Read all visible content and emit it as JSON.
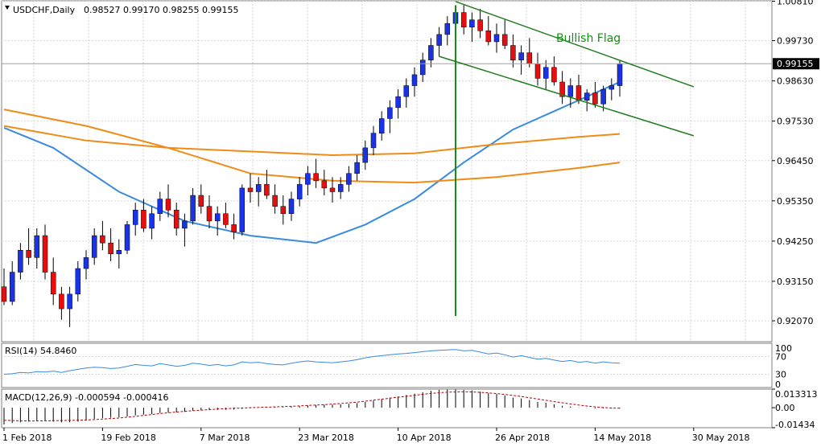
{
  "window_title": "USDCHF,Daily",
  "ohlc_header": "0.98527 0.99170 0.98255 0.99155",
  "current_price_label": "0.99155",
  "colors": {
    "bull": "#1a33e6",
    "bear": "#e60f0f",
    "wick": "#000000",
    "ma_fast": "#3a8be0",
    "ma_mid": "#f08b16",
    "ma_slow": "#f08b16",
    "channel": "#1e7d1e",
    "pole": "#158e15",
    "annotation": "#158e15",
    "grid": "#d7d7d7",
    "panel_border": "#7f7f7f",
    "rsi_line": "#3a8be0",
    "macd_hist": "#b30000",
    "macd_signal": "#b30000"
  },
  "chart_data": {
    "type": "candlestick",
    "title": "USDCHF,Daily",
    "ylim": [
      0.915,
      1.0082
    ],
    "y_ticks": [
      "1.00810",
      "0.99730",
      "0.98630",
      "0.97530",
      "0.96450",
      "0.95350",
      "0.94250",
      "0.93150",
      "0.92070"
    ],
    "x_tick_labels": [
      "1 Feb 2018",
      "19 Feb 2018",
      "7 Mar 2018",
      "23 Mar 2018",
      "10 Apr 2018",
      "26 Apr 2018",
      "14 May 2018",
      "30 May 2018"
    ],
    "x_tick_bar_index": [
      0,
      12,
      24,
      36,
      48,
      60,
      72,
      84
    ],
    "candles": [
      [
        0.93,
        0.935,
        0.925,
        0.926
      ],
      [
        0.926,
        0.937,
        0.925,
        0.934
      ],
      [
        0.934,
        0.942,
        0.932,
        0.94
      ],
      [
        0.94,
        0.946,
        0.936,
        0.938
      ],
      [
        0.938,
        0.946,
        0.935,
        0.944
      ],
      [
        0.944,
        0.947,
        0.932,
        0.934
      ],
      [
        0.934,
        0.938,
        0.925,
        0.928
      ],
      [
        0.928,
        0.93,
        0.921,
        0.924
      ],
      [
        0.924,
        0.93,
        0.919,
        0.928
      ],
      [
        0.928,
        0.937,
        0.926,
        0.935
      ],
      [
        0.935,
        0.94,
        0.932,
        0.938
      ],
      [
        0.938,
        0.946,
        0.936,
        0.944
      ],
      [
        0.944,
        0.948,
        0.94,
        0.942
      ],
      [
        0.942,
        0.946,
        0.937,
        0.939
      ],
      [
        0.939,
        0.943,
        0.935,
        0.94
      ],
      [
        0.94,
        0.948,
        0.939,
        0.947
      ],
      [
        0.947,
        0.953,
        0.944,
        0.951
      ],
      [
        0.951,
        0.954,
        0.945,
        0.946
      ],
      [
        0.946,
        0.952,
        0.943,
        0.95
      ],
      [
        0.95,
        0.956,
        0.948,
        0.954
      ],
      [
        0.954,
        0.958,
        0.949,
        0.951
      ],
      [
        0.951,
        0.953,
        0.944,
        0.946
      ],
      [
        0.946,
        0.95,
        0.941,
        0.948
      ],
      [
        0.948,
        0.957,
        0.947,
        0.955
      ],
      [
        0.955,
        0.958,
        0.95,
        0.952
      ],
      [
        0.952,
        0.955,
        0.946,
        0.948
      ],
      [
        0.948,
        0.952,
        0.944,
        0.95
      ],
      [
        0.95,
        0.953,
        0.946,
        0.947
      ],
      [
        0.947,
        0.95,
        0.943,
        0.945
      ],
      [
        0.945,
        0.958,
        0.944,
        0.957
      ],
      [
        0.957,
        0.961,
        0.953,
        0.956
      ],
      [
        0.956,
        0.96,
        0.952,
        0.958
      ],
      [
        0.958,
        0.962,
        0.954,
        0.955
      ],
      [
        0.955,
        0.958,
        0.95,
        0.952
      ],
      [
        0.952,
        0.955,
        0.947,
        0.95
      ],
      [
        0.95,
        0.956,
        0.948,
        0.954
      ],
      [
        0.954,
        0.96,
        0.952,
        0.958
      ],
      [
        0.958,
        0.963,
        0.955,
        0.961
      ],
      [
        0.961,
        0.965,
        0.957,
        0.959
      ],
      [
        0.959,
        0.962,
        0.955,
        0.957
      ],
      [
        0.957,
        0.96,
        0.953,
        0.956
      ],
      [
        0.956,
        0.96,
        0.954,
        0.958
      ],
      [
        0.958,
        0.963,
        0.956,
        0.961
      ],
      [
        0.961,
        0.966,
        0.959,
        0.964
      ],
      [
        0.964,
        0.97,
        0.962,
        0.968
      ],
      [
        0.968,
        0.974,
        0.966,
        0.972
      ],
      [
        0.972,
        0.978,
        0.97,
        0.976
      ],
      [
        0.976,
        0.981,
        0.972,
        0.979
      ],
      [
        0.979,
        0.984,
        0.976,
        0.982
      ],
      [
        0.982,
        0.987,
        0.979,
        0.985
      ],
      [
        0.985,
        0.99,
        0.982,
        0.988
      ],
      [
        0.988,
        0.994,
        0.986,
        0.992
      ],
      [
        0.992,
        0.998,
        0.99,
        0.996
      ],
      [
        0.996,
        1.001,
        0.993,
        0.999
      ],
      [
        0.999,
        1.004,
        0.996,
        1.002
      ],
      [
        1.002,
        1.007,
        0.999,
        1.005
      ],
      [
        1.005,
        1.007,
        0.999,
        1.001
      ],
      [
        1.001,
        1.005,
        0.997,
        1.003
      ],
      [
        1.003,
        1.006,
        0.998,
        1.0
      ],
      [
        1.0,
        1.004,
        0.996,
        0.997
      ],
      [
        0.997,
        1.002,
        0.994,
        0.999
      ],
      [
        0.999,
        1.003,
        0.995,
        0.996
      ],
      [
        0.996,
        0.999,
        0.99,
        0.992
      ],
      [
        0.992,
        0.996,
        0.988,
        0.994
      ],
      [
        0.994,
        0.998,
        0.99,
        0.991
      ],
      [
        0.991,
        0.994,
        0.985,
        0.987
      ],
      [
        0.987,
        0.992,
        0.984,
        0.99
      ],
      [
        0.99,
        0.993,
        0.985,
        0.986
      ],
      [
        0.986,
        0.989,
        0.98,
        0.982
      ],
      [
        0.982,
        0.987,
        0.979,
        0.985
      ],
      [
        0.985,
        0.988,
        0.98,
        0.981
      ],
      [
        0.981,
        0.984,
        0.978,
        0.983
      ],
      [
        0.983,
        0.986,
        0.979,
        0.98
      ],
      [
        0.98,
        0.985,
        0.978,
        0.984
      ],
      [
        0.984,
        0.987,
        0.981,
        0.985
      ],
      [
        0.985,
        0.992,
        0.982,
        0.991
      ]
    ],
    "moving_averages": [
      {
        "period_hint": "fast",
        "points": [
          [
            0,
            0.9735
          ],
          [
            6,
            0.968
          ],
          [
            14,
            0.956
          ],
          [
            22,
            0.948
          ],
          [
            30,
            0.944
          ],
          [
            38,
            0.942
          ],
          [
            44,
            0.947
          ],
          [
            50,
            0.954
          ],
          [
            56,
            0.964
          ],
          [
            62,
            0.973
          ],
          [
            68,
            0.979
          ],
          [
            75,
            0.986
          ]
        ]
      },
      {
        "period_hint": "mid",
        "points": [
          [
            0,
            0.974
          ],
          [
            10,
            0.97
          ],
          [
            20,
            0.968
          ],
          [
            30,
            0.967
          ],
          [
            40,
            0.966
          ],
          [
            50,
            0.9665
          ],
          [
            60,
            0.969
          ],
          [
            70,
            0.971
          ],
          [
            75,
            0.9718
          ]
        ]
      },
      {
        "period_hint": "slow",
        "points": [
          [
            0,
            0.9785
          ],
          [
            10,
            0.974
          ],
          [
            20,
            0.968
          ],
          [
            30,
            0.961
          ],
          [
            40,
            0.959
          ],
          [
            50,
            0.9585
          ],
          [
            60,
            0.96
          ],
          [
            70,
            0.9625
          ],
          [
            75,
            0.964
          ]
        ]
      }
    ],
    "annotations": [
      {
        "type": "text",
        "text": "Bullish Flag",
        "bar": 69,
        "price": 0.9993
      },
      {
        "type": "vline",
        "bar": 55,
        "from": 0.922,
        "to": 1.007
      },
      {
        "type": "line",
        "from": [
          55,
          1.008
        ],
        "to": [
          84,
          0.9847
        ]
      },
      {
        "type": "line",
        "from": [
          53,
          0.993
        ],
        "to": [
          84,
          0.9713
        ]
      }
    ]
  },
  "rsi_panel": {
    "label": "RSI(14) 54.8460",
    "axis_labels": [
      "100",
      "70",
      "30",
      "0"
    ],
    "levels": [
      100,
      70,
      30,
      0
    ],
    "values": [
      30,
      31,
      34,
      33,
      36,
      35,
      37,
      34,
      38,
      41,
      44,
      46,
      45,
      43,
      44,
      48,
      52,
      50,
      49,
      54,
      51,
      48,
      50,
      55,
      53,
      50,
      52,
      49,
      51,
      58,
      56,
      57,
      54,
      52,
      51,
      55,
      58,
      60,
      58,
      57,
      56,
      58,
      60,
      63,
      67,
      70,
      72,
      74,
      76,
      77,
      79,
      81,
      83,
      84,
      85,
      86,
      83,
      84,
      80,
      76,
      78,
      74,
      69,
      72,
      68,
      64,
      66,
      62,
      59,
      61,
      57,
      59,
      55,
      58,
      56,
      54.846
    ]
  },
  "macd_panel": {
    "label": "MACD(12,26,9) -0.000594 -0.000416",
    "axis_labels": [
      "0.013313",
      "0.00",
      "-0.01434"
    ],
    "ylim": [
      -0.01434,
      0.013313
    ],
    "histogram": [
      -0.012,
      -0.011,
      -0.0105,
      -0.01,
      -0.0095,
      -0.0095,
      -0.01,
      -0.0105,
      -0.0105,
      -0.01,
      -0.009,
      -0.008,
      -0.0075,
      -0.0072,
      -0.007,
      -0.0062,
      -0.0055,
      -0.005,
      -0.0045,
      -0.0038,
      -0.0035,
      -0.0033,
      -0.003,
      -0.0022,
      -0.0018,
      -0.0018,
      -0.0016,
      -0.0015,
      -0.0014,
      -0.0008,
      -0.0004,
      0.0,
      0.0002,
      0.0003,
      0.0004,
      0.0007,
      0.001,
      0.0015,
      0.0019,
      0.0021,
      0.0022,
      0.0024,
      0.0028,
      0.0033,
      0.0041,
      0.0051,
      0.0062,
      0.0072,
      0.0081,
      0.0091,
      0.0101,
      0.0111,
      0.0121,
      0.0128,
      0.0131,
      0.0132,
      0.0127,
      0.0124,
      0.0115,
      0.0103,
      0.0098,
      0.0087,
      0.0072,
      0.0066,
      0.0055,
      0.0042,
      0.0035,
      0.0024,
      0.0014,
      0.0009,
      0.0002,
      -0.0001,
      -0.0005,
      -0.0005,
      -0.0006,
      -0.000594
    ],
    "signal": [
      -0.009,
      -0.0092,
      -0.0094,
      -0.0095,
      -0.0095,
      -0.0094,
      -0.0093,
      -0.0092,
      -0.0091,
      -0.009,
      -0.0088,
      -0.0085,
      -0.0082,
      -0.0078,
      -0.0074,
      -0.0068,
      -0.0062,
      -0.0055,
      -0.0049,
      -0.0042,
      -0.0036,
      -0.0031,
      -0.0026,
      -0.0022,
      -0.0018,
      -0.0014,
      -0.001,
      -0.0007,
      -0.0004,
      -0.0002,
      0.0,
      0.0002,
      0.0004,
      0.0006,
      0.0008,
      0.001,
      0.0013,
      0.0016,
      0.0019,
      0.0022,
      0.0026,
      0.003,
      0.0035,
      0.004,
      0.0047,
      0.0054,
      0.0061,
      0.0068,
      0.0075,
      0.0082,
      0.0089,
      0.0096,
      0.0102,
      0.0107,
      0.0111,
      0.0113,
      0.0114,
      0.0113,
      0.011,
      0.0106,
      0.0101,
      0.0095,
      0.0088,
      0.008,
      0.0071,
      0.0062,
      0.0053,
      0.0044,
      0.0035,
      0.0027,
      0.0019,
      0.0012,
      0.0006,
      0.0001,
      -0.0002,
      -0.000416
    ]
  }
}
